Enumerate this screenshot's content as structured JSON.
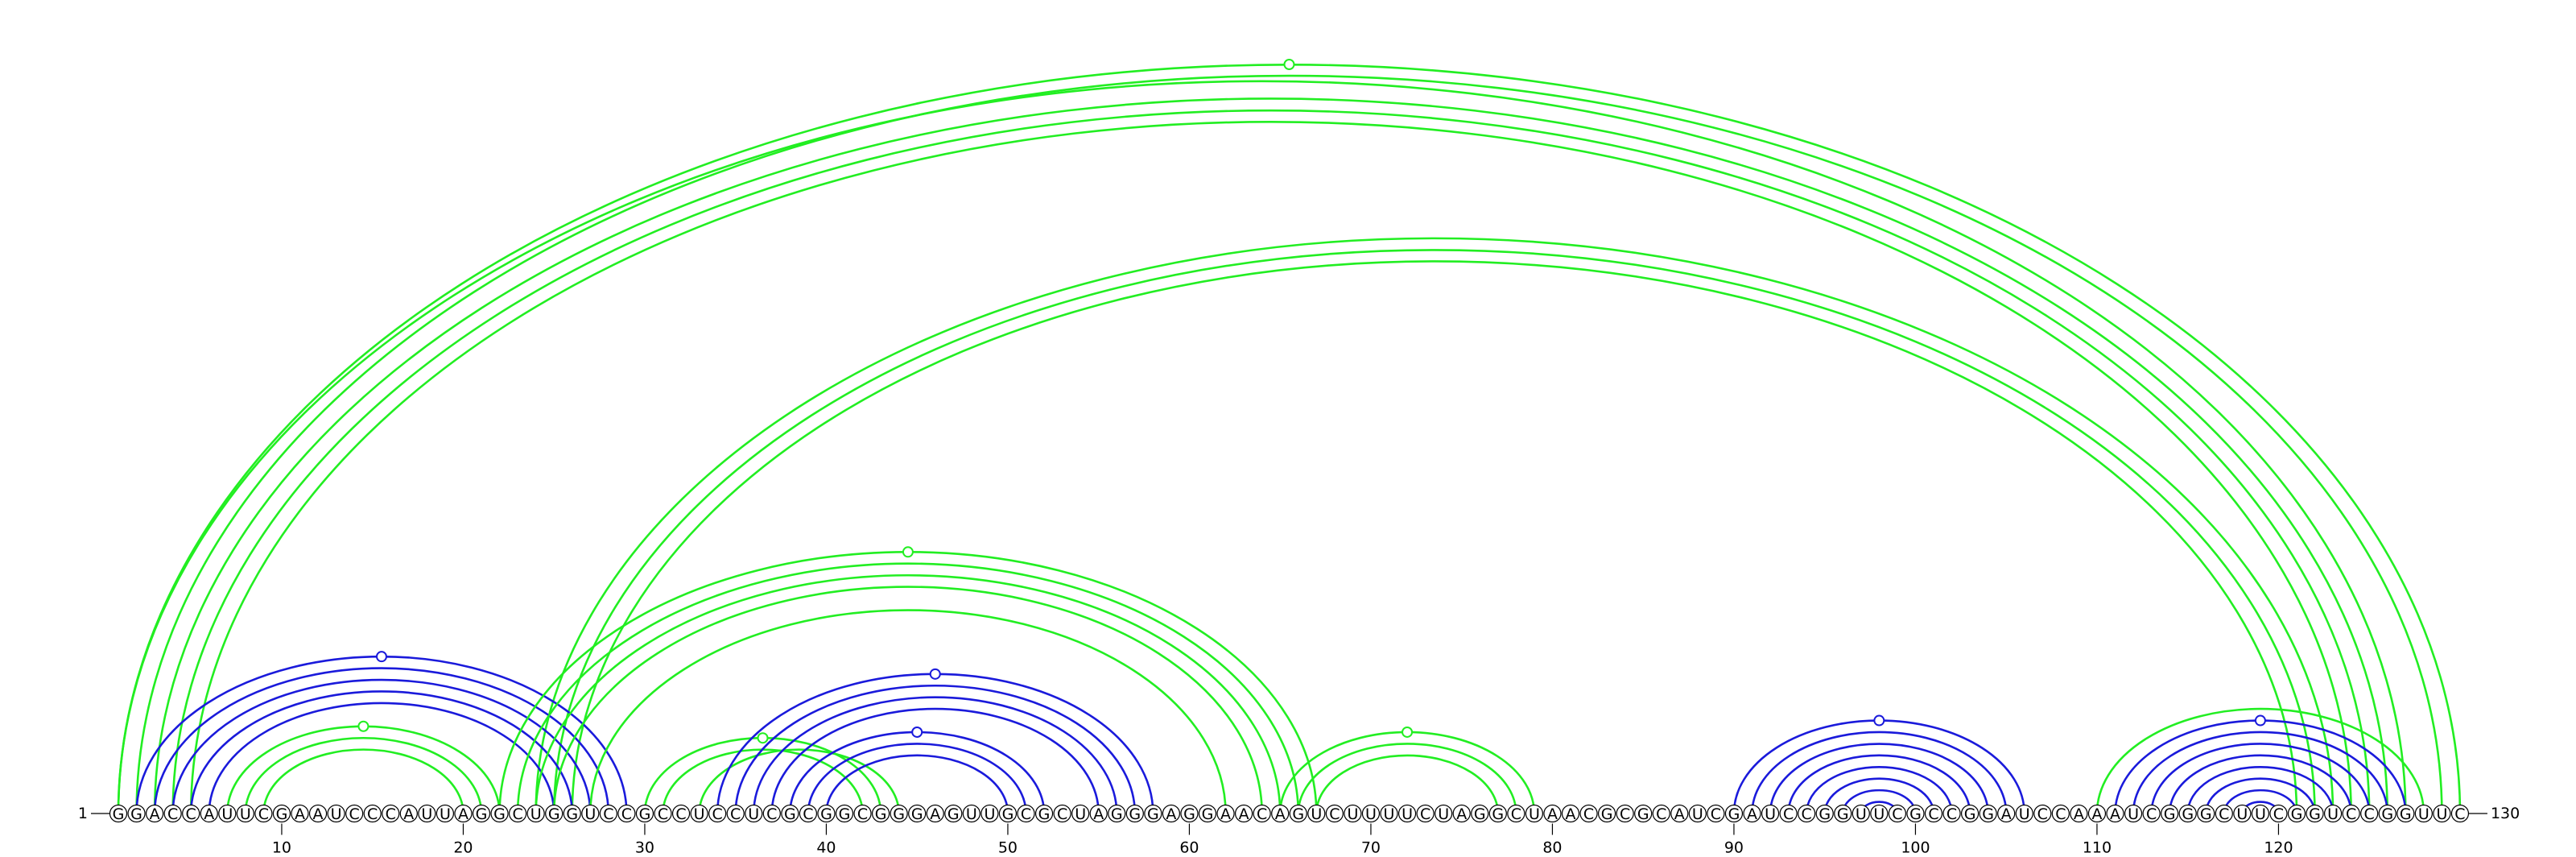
{
  "sequence": "GGACCAUUCGAAUCCCAUUAGGCUGGUCCGCCUCCUCGCGGCGGGAGUUGCGCUAGGGAGGAACAGUCUUUUCUAGGCUAACGCGCAUCGAUCCGGUUCGCCGGAUCCAAAUCGGGCUUCGGUCCGGUUC",
  "start_label": "1",
  "end_label": "130",
  "ticks": [
    10,
    20,
    30,
    40,
    50,
    60,
    70,
    80,
    90,
    100,
    110,
    120
  ],
  "colors": {
    "green": "#22ee22",
    "blue": "#1a1adb"
  },
  "arc_groups": [
    {
      "name": "long-range-helix",
      "color": "green",
      "pairs": [
        [
          1,
          130
        ],
        [
          2,
          129
        ],
        [
          3,
          126
        ],
        [
          4,
          125
        ],
        [
          5,
          124
        ],
        [
          24,
          123
        ],
        [
          25,
          122
        ],
        [
          26,
          121
        ]
      ]
    },
    {
      "name": "long-range-helix-outer",
      "color": "green",
      "pairs": [
        [
          1,
          127
        ]
      ]
    },
    {
      "name": "first-stem",
      "color": "blue",
      "pairs": [
        [
          2,
          29
        ],
        [
          3,
          28
        ],
        [
          4,
          27
        ],
        [
          5,
          26
        ],
        [
          6,
          25
        ]
      ]
    },
    {
      "name": "first-hairpin",
      "color": "green",
      "pairs": [
        [
          7,
          22
        ],
        [
          8,
          21
        ],
        [
          9,
          20
        ]
      ]
    },
    {
      "name": "middle-helix",
      "color": "green",
      "pairs": [
        [
          22,
          67
        ],
        [
          23,
          66
        ],
        [
          24,
          65
        ],
        [
          25,
          64
        ],
        [
          27,
          62
        ]
      ]
    },
    {
      "name": "small-stem-a",
      "color": "green",
      "pairs": [
        [
          30,
          43
        ],
        [
          31,
          42
        ]
      ]
    },
    {
      "name": "small-stem-b",
      "color": "green",
      "pairs": [
        [
          33,
          44
        ]
      ]
    },
    {
      "name": "inner-blue-helix",
      "color": "blue",
      "pairs": [
        [
          34,
          58
        ],
        [
          35,
          57
        ],
        [
          36,
          56
        ],
        [
          37,
          55
        ]
      ]
    },
    {
      "name": "inner-blue-hairpin",
      "color": "blue",
      "pairs": [
        [
          38,
          52
        ],
        [
          39,
          51
        ],
        [
          40,
          50
        ]
      ]
    },
    {
      "name": "right-mid-hairpin",
      "color": "green",
      "pairs": [
        [
          65,
          79
        ],
        [
          66,
          78
        ],
        [
          67,
          77
        ]
      ]
    },
    {
      "name": "right-blue-hairpin",
      "color": "blue",
      "pairs": [
        [
          90,
          106
        ],
        [
          91,
          105
        ],
        [
          92,
          104
        ],
        [
          93,
          103
        ],
        [
          94,
          102
        ],
        [
          95,
          101
        ],
        [
          96,
          100
        ],
        [
          97,
          99
        ]
      ]
    },
    {
      "name": "far-right-outer",
      "color": "green",
      "pairs": [
        [
          110,
          128
        ]
      ]
    },
    {
      "name": "far-right-blue-helix",
      "color": "blue",
      "pairs": [
        [
          111,
          127
        ],
        [
          112,
          126
        ],
        [
          113,
          125
        ],
        [
          114,
          124
        ],
        [
          115,
          123
        ],
        [
          116,
          122
        ],
        [
          117,
          121
        ],
        [
          118,
          120
        ]
      ]
    }
  ]
}
